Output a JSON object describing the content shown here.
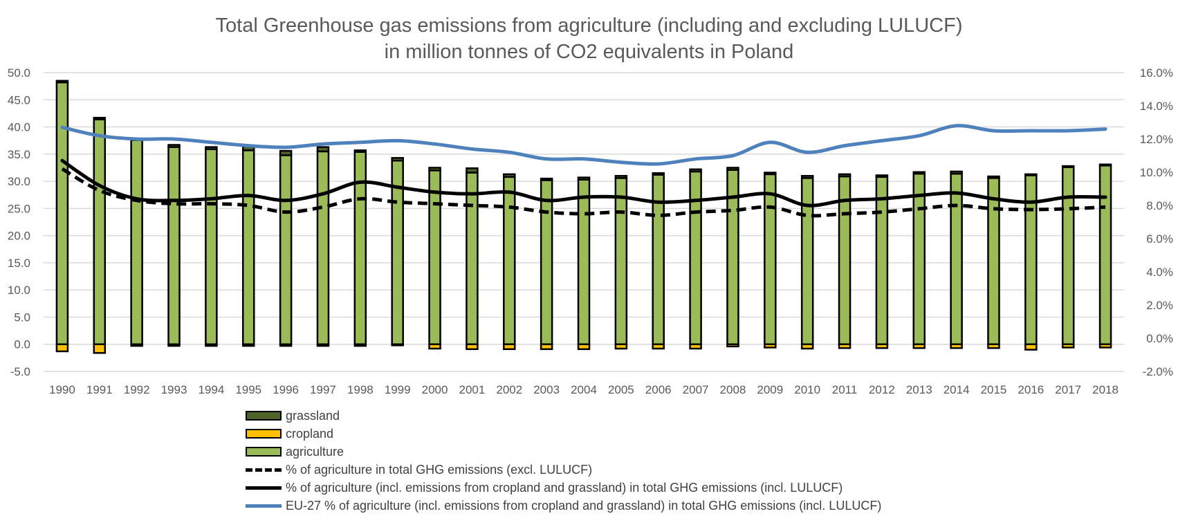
{
  "chart_data": {
    "type": "bar",
    "title": "Total Greenhouse gas emissions from agriculture (including and excluding LULUCF)",
    "subtitle": "in million tonnes of CO2 equivalents in Poland",
    "xlabel": "",
    "ylabel": "",
    "y2label": "",
    "ylim": [
      -5,
      50
    ],
    "y2lim": [
      -2,
      16
    ],
    "yticks": [
      "50.0",
      "45.0",
      "40.0",
      "35.0",
      "30.0",
      "25.0",
      "20.0",
      "15.0",
      "10.0",
      "5.0",
      "0.0",
      "-5.0"
    ],
    "yticks_values": [
      50,
      45,
      40,
      35,
      30,
      25,
      20,
      15,
      10,
      5,
      0,
      -5
    ],
    "y2ticks": [
      "16.0%",
      "14.0%",
      "12.0%",
      "10.0%",
      "8.0%",
      "6.0%",
      "4.0%",
      "2.0%",
      "0.0%",
      "-2.0%"
    ],
    "y2ticks_values": [
      16,
      14,
      12,
      10,
      8,
      6,
      4,
      2,
      0,
      -2
    ],
    "grid": true,
    "legend_position": "bottom-left",
    "categories": [
      "1990",
      "1991",
      "1992",
      "1993",
      "1994",
      "1995",
      "1996",
      "1997",
      "1998",
      "1999",
      "2000",
      "2001",
      "2002",
      "2003",
      "2004",
      "2005",
      "2006",
      "2007",
      "2008",
      "2009",
      "2010",
      "2011",
      "2012",
      "2013",
      "2014",
      "2015",
      "2016",
      "2017",
      "2018"
    ],
    "series": [
      {
        "name": "agriculture",
        "kind": "bar",
        "axis": "left",
        "color": "#9bbb59",
        "values": [
          48.2,
          41.4,
          37.6,
          36.3,
          35.9,
          35.7,
          34.8,
          35.5,
          35.4,
          33.8,
          32.0,
          31.6,
          30.8,
          30.2,
          30.3,
          30.6,
          31.2,
          31.8,
          32.1,
          31.3,
          30.6,
          30.9,
          30.8,
          31.4,
          31.4,
          30.6,
          31.1,
          32.6,
          32.9
        ]
      },
      {
        "name": "grassland",
        "kind": "bar",
        "axis": "left",
        "color": "#4f6228",
        "values": [
          0.3,
          0.3,
          0.1,
          0.4,
          0.4,
          0.8,
          0.8,
          0.8,
          0.3,
          0.5,
          0.5,
          0.8,
          0.5,
          0.3,
          0.4,
          0.4,
          0.3,
          0.4,
          0.4,
          0.3,
          0.4,
          0.4,
          0.3,
          0.3,
          0.4,
          0.3,
          0.2,
          0.2,
          0.2
        ]
      },
      {
        "name": "cropland",
        "kind": "bar",
        "axis": "left",
        "color": "#ffc000",
        "values": [
          -1.3,
          -1.6,
          -0.3,
          -0.3,
          -0.3,
          -0.3,
          -0.3,
          -0.3,
          -0.3,
          -0.2,
          -0.8,
          -0.9,
          -0.9,
          -0.9,
          -0.9,
          -0.8,
          -0.8,
          -0.8,
          -0.4,
          -0.6,
          -0.8,
          -0.7,
          -0.7,
          -0.7,
          -0.7,
          -0.7,
          -1.0,
          -0.6,
          -0.6
        ]
      },
      {
        "name": "% of agriculture in total GHG emissions (excl. LULUCF)",
        "kind": "line",
        "style": "dashed",
        "axis": "right",
        "color": "#000000",
        "values": [
          10.2,
          8.9,
          8.3,
          8.1,
          8.1,
          8.0,
          7.6,
          7.9,
          8.4,
          8.2,
          8.1,
          8.0,
          7.9,
          7.6,
          7.5,
          7.6,
          7.4,
          7.6,
          7.7,
          7.9,
          7.4,
          7.5,
          7.6,
          7.8,
          8.0,
          7.8,
          7.75,
          7.8,
          7.9
        ]
      },
      {
        "name": "% of agriculture (incl. emissions from cropland and grassland) in total GHG emissions (incl. LULUCF)",
        "kind": "line",
        "style": "solid",
        "axis": "right",
        "color": "#000000",
        "values": [
          10.7,
          9.2,
          8.4,
          8.3,
          8.4,
          8.6,
          8.3,
          8.7,
          9.4,
          9.1,
          8.8,
          8.7,
          8.8,
          8.3,
          8.5,
          8.5,
          8.2,
          8.3,
          8.5,
          8.7,
          8.0,
          8.3,
          8.4,
          8.6,
          8.75,
          8.4,
          8.2,
          8.5,
          8.5
        ]
      },
      {
        "name": "EU-27 % of agriculture (incl. emissions from cropland and grassland) in total GHG emissions (incl. LULUCF)",
        "kind": "line",
        "style": "solid",
        "axis": "right",
        "color": "#4f81bd",
        "values": [
          12.7,
          12.2,
          12.0,
          12.0,
          11.8,
          11.6,
          11.5,
          11.7,
          11.8,
          11.9,
          11.7,
          11.4,
          11.2,
          10.8,
          10.8,
          10.6,
          10.5,
          10.8,
          11.0,
          11.8,
          11.2,
          11.6,
          11.9,
          12.2,
          12.8,
          12.5,
          12.5,
          12.5,
          12.6
        ]
      }
    ],
    "legend": [
      {
        "label": "grassland",
        "type": "box",
        "color": "#4f6228"
      },
      {
        "label": "cropland",
        "type": "box",
        "color": "#ffc000"
      },
      {
        "label": "agriculture",
        "type": "box",
        "color": "#9bbb59"
      },
      {
        "label": "% of agriculture in total GHG emissions (excl. LULUCF)",
        "type": "dashed",
        "color": "#000000"
      },
      {
        "label": "% of agriculture (incl. emissions from cropland and grassland) in total GHG emissions (incl. LULUCF)",
        "type": "solid",
        "color": "#000000"
      },
      {
        "label": "EU-27 % of agriculture (incl. emissions from cropland and grassland) in total GHG emissions (incl. LULUCF)",
        "type": "solid",
        "color": "#4f81bd"
      }
    ]
  }
}
